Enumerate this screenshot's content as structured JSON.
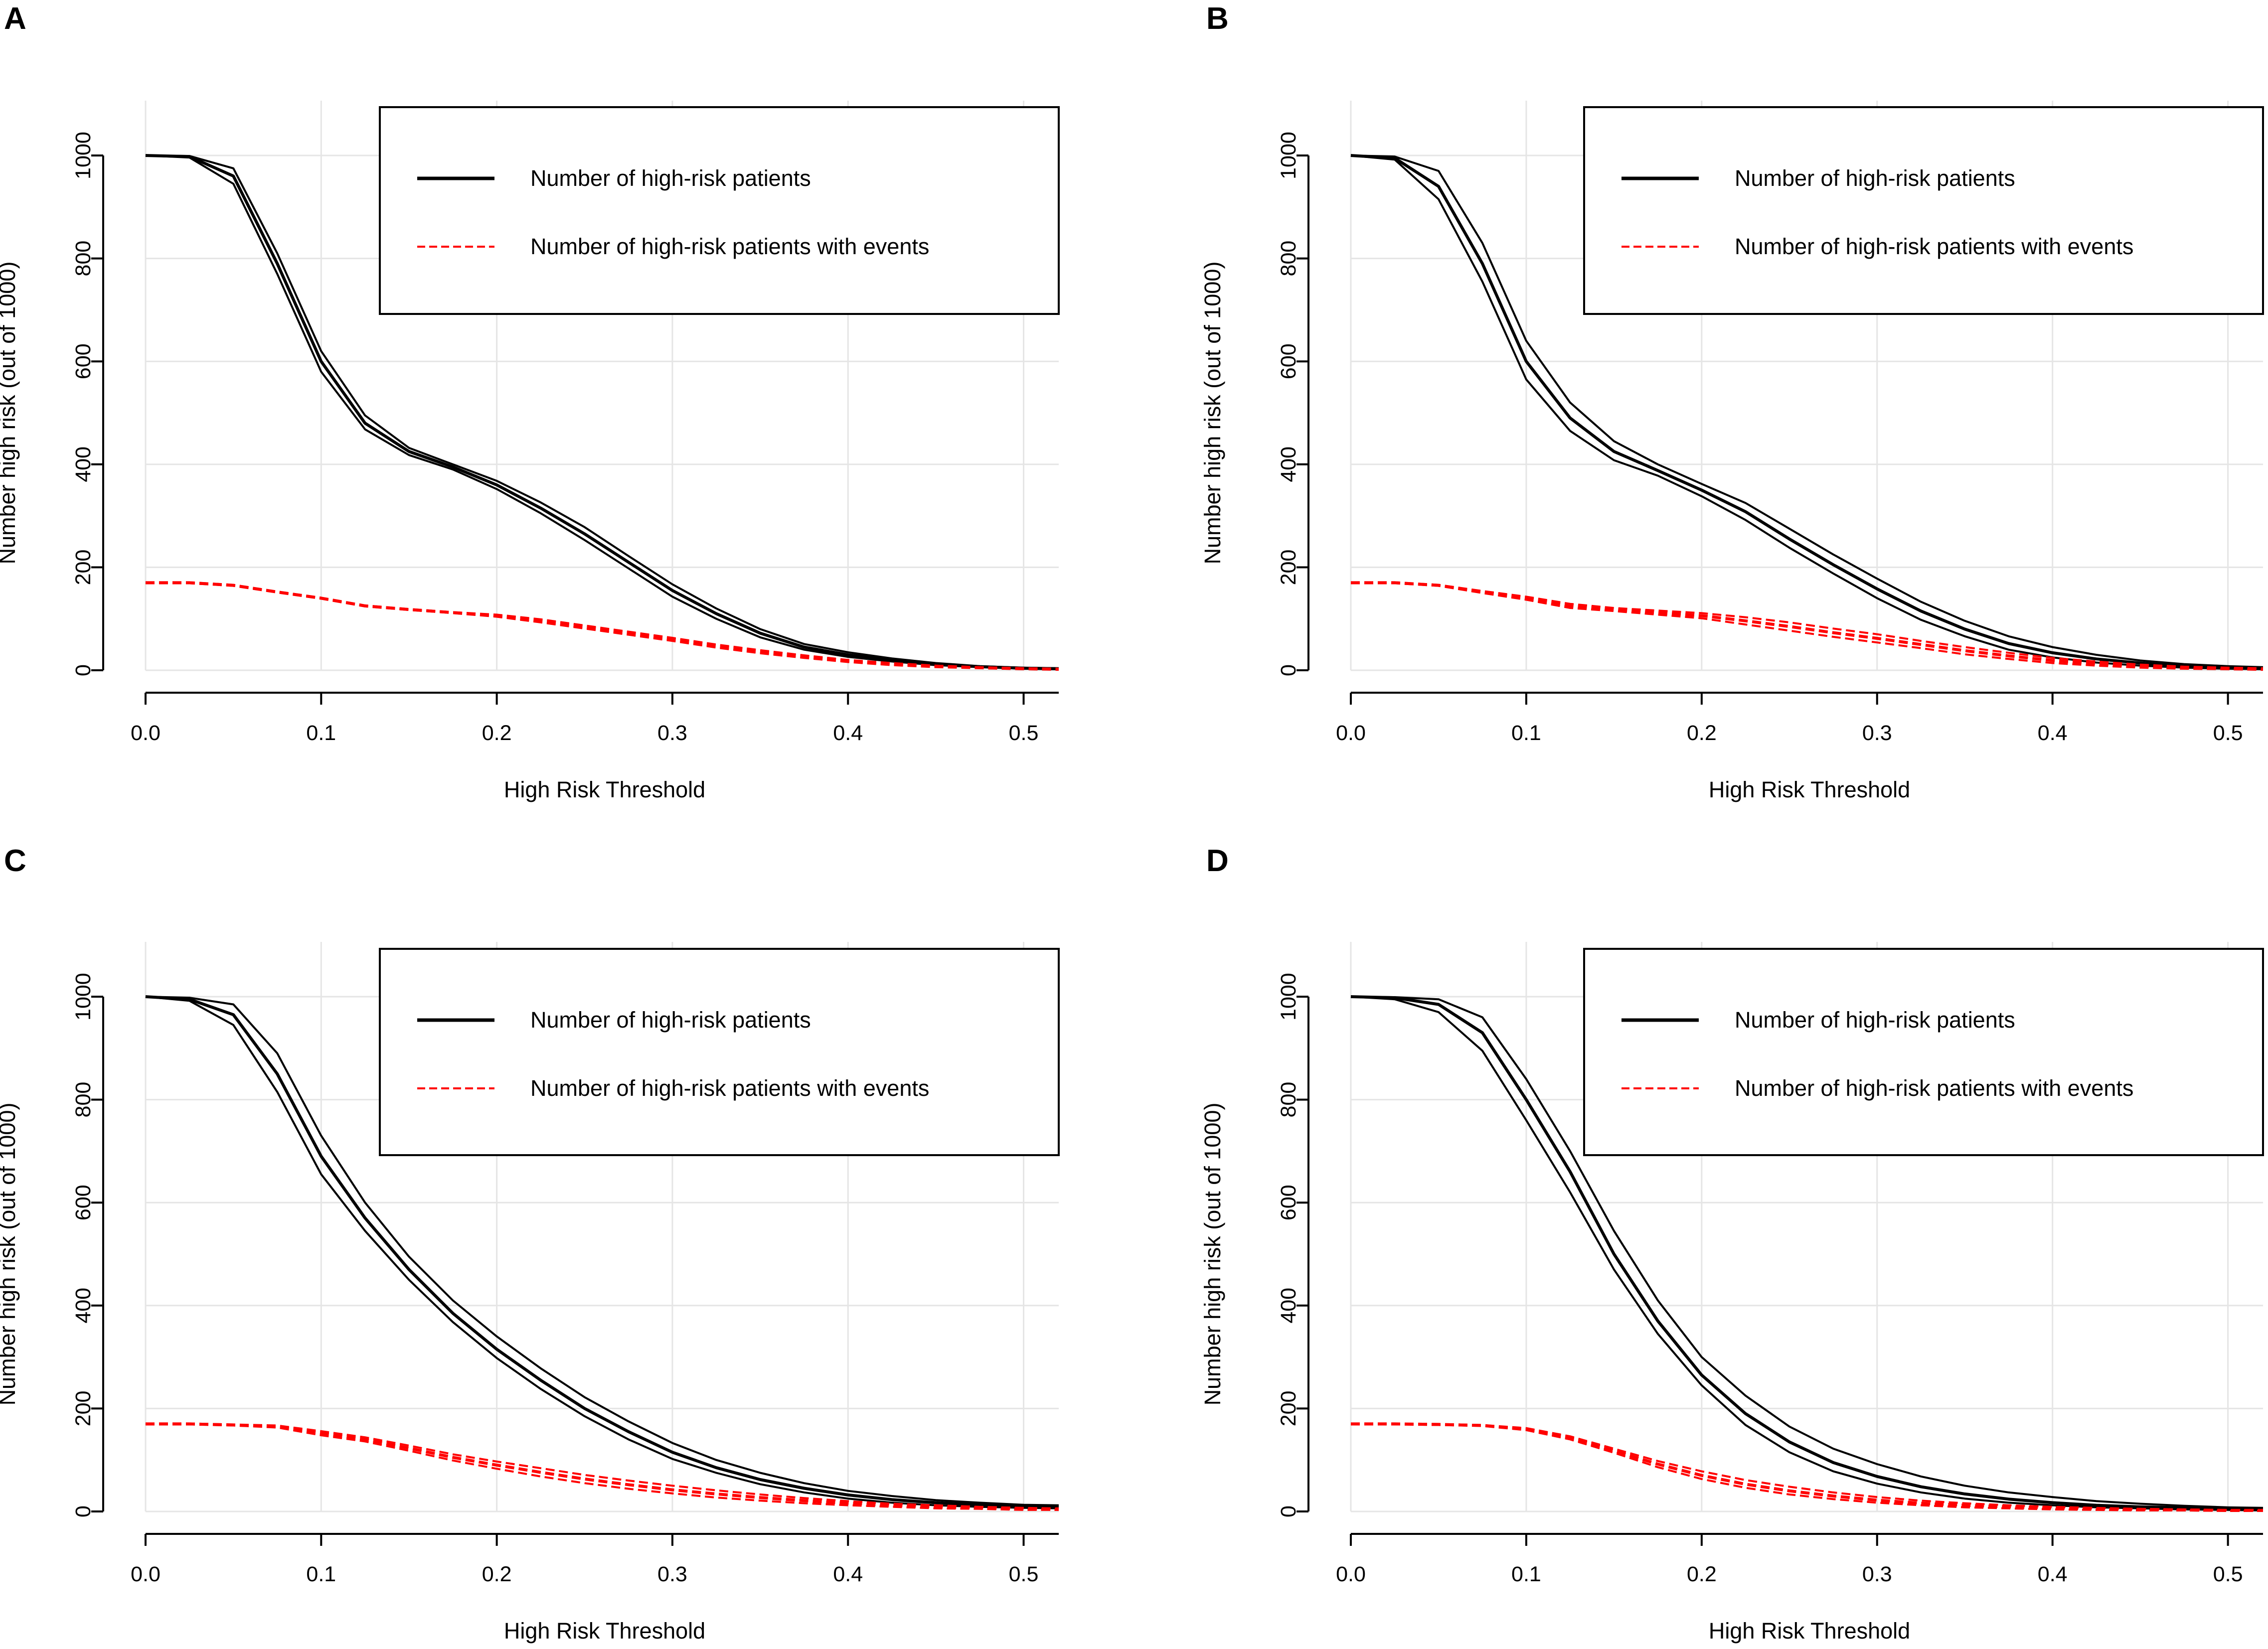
{
  "figure": {
    "series_colors": {
      "patients": "#000000",
      "events": "#ff0000"
    }
  },
  "chart_data": [
    {
      "panel": "A",
      "type": "line",
      "title": "",
      "xlabel": "High Risk Threshold",
      "ylabel": "Number high risk (out of 1000)",
      "xlim": [
        0,
        0.52
      ],
      "ylim": [
        0,
        1000
      ],
      "xticks": [
        0,
        0.1,
        0.2,
        0.3,
        0.4,
        0.5
      ],
      "xtick_labels": [
        "0.0",
        "0.1",
        "0.2",
        "0.3",
        "0.4",
        "0.5"
      ],
      "yticks": [
        0,
        200,
        400,
        600,
        800,
        1000
      ],
      "ytick_labels": [
        "0",
        "200",
        "400",
        "600",
        "800",
        "1000"
      ],
      "legend": [
        "Number of high-risk patients",
        "Number of high-risk patients with events"
      ],
      "legend_position": "top-right",
      "x": [
        0,
        0.025,
        0.05,
        0.075,
        0.1,
        0.125,
        0.15,
        0.175,
        0.2,
        0.225,
        0.25,
        0.275,
        0.3,
        0.325,
        0.35,
        0.375,
        0.4,
        0.425,
        0.45,
        0.475,
        0.5,
        0.52
      ],
      "series": [
        {
          "name": "Number of high-risk patients",
          "role": "estimate",
          "values": [
            1000,
            998,
            960,
            790,
            600,
            480,
            425,
            395,
            360,
            315,
            265,
            210,
            155,
            110,
            72,
            45,
            30,
            20,
            12,
            7,
            4,
            3
          ]
        },
        {
          "name": "Number of high-risk patients (upper bound)",
          "role": "band",
          "values": [
            1000,
            999,
            975,
            810,
            620,
            495,
            432,
            400,
            368,
            326,
            278,
            222,
            167,
            120,
            80,
            51,
            35,
            23,
            14,
            8,
            5,
            4
          ]
        },
        {
          "name": "Number of high-risk patients (lower bound)",
          "role": "band",
          "values": [
            1000,
            996,
            945,
            770,
            580,
            468,
            418,
            390,
            352,
            305,
            253,
            198,
            143,
            100,
            64,
            40,
            26,
            17,
            10,
            6,
            3,
            2
          ]
        },
        {
          "name": "Number of high-risk patients with events",
          "role": "estimate",
          "values": [
            170,
            170,
            165,
            152,
            140,
            125,
            118,
            112,
            106,
            96,
            84,
            72,
            60,
            47,
            36,
            27,
            18,
            12,
            8,
            5,
            3,
            2
          ]
        },
        {
          "name": "Number of high-risk patients with events (upper bound)",
          "role": "band",
          "values": [
            171,
            171,
            166,
            153,
            141,
            126,
            119,
            113,
            108,
            99,
            87,
            75,
            63,
            50,
            39,
            29,
            20,
            14,
            9,
            6,
            4,
            3
          ]
        },
        {
          "name": "Number of high-risk patients with events (lower bound)",
          "role": "band",
          "values": [
            169,
            169,
            164,
            151,
            139,
            124,
            117,
            111,
            104,
            93,
            81,
            69,
            57,
            44,
            33,
            24,
            16,
            10,
            6,
            4,
            2,
            1
          ]
        }
      ]
    },
    {
      "panel": "B",
      "type": "line",
      "title": "",
      "xlabel": "High Risk Threshold",
      "ylabel": "Number high risk (out of 1000)",
      "xlim": [
        0,
        0.52
      ],
      "ylim": [
        0,
        1000
      ],
      "xticks": [
        0,
        0.1,
        0.2,
        0.3,
        0.4,
        0.5
      ],
      "xtick_labels": [
        "0.0",
        "0.1",
        "0.2",
        "0.3",
        "0.4",
        "0.5"
      ],
      "yticks": [
        0,
        200,
        400,
        600,
        800,
        1000
      ],
      "ytick_labels": [
        "0",
        "200",
        "400",
        "600",
        "800",
        "1000"
      ],
      "legend": [
        "Number of high-risk patients",
        "Number of high-risk patients with events"
      ],
      "legend_position": "top-right",
      "x": [
        0,
        0.025,
        0.05,
        0.075,
        0.1,
        0.125,
        0.15,
        0.175,
        0.2,
        0.225,
        0.25,
        0.275,
        0.3,
        0.325,
        0.35,
        0.375,
        0.4,
        0.425,
        0.45,
        0.475,
        0.5,
        0.52
      ],
      "series": [
        {
          "name": "Number of high-risk patients",
          "role": "estimate",
          "values": [
            1000,
            995,
            940,
            790,
            600,
            490,
            425,
            388,
            350,
            308,
            255,
            205,
            158,
            115,
            80,
            52,
            34,
            22,
            14,
            8,
            5,
            4
          ]
        },
        {
          "name": "Number of high-risk patients (upper bound)",
          "role": "band",
          "values": [
            1000,
            998,
            970,
            830,
            640,
            520,
            445,
            400,
            362,
            325,
            275,
            225,
            178,
            133,
            96,
            66,
            45,
            30,
            19,
            12,
            8,
            6
          ]
        },
        {
          "name": "Number of high-risk patients (lower bound)",
          "role": "band",
          "values": [
            1000,
            992,
            915,
            755,
            565,
            465,
            408,
            378,
            338,
            292,
            238,
            188,
            140,
            98,
            66,
            40,
            25,
            15,
            9,
            5,
            3,
            2
          ]
        },
        {
          "name": "Number of high-risk patients with events",
          "role": "estimate",
          "values": [
            170,
            170,
            165,
            152,
            140,
            125,
            118,
            112,
            106,
            96,
            85,
            73,
            62,
            50,
            38,
            28,
            19,
            13,
            8,
            5,
            3,
            2
          ]
        },
        {
          "name": "Number of high-risk patients with events (upper bound)",
          "role": "band",
          "values": [
            171,
            171,
            166,
            154,
            143,
            129,
            121,
            116,
            111,
            103,
            93,
            81,
            70,
            57,
            45,
            34,
            24,
            17,
            11,
            7,
            5,
            4
          ]
        },
        {
          "name": "Number of high-risk patients with events (lower bound)",
          "role": "band",
          "values": [
            169,
            169,
            164,
            150,
            137,
            121,
            115,
            108,
            101,
            89,
            77,
            65,
            54,
            43,
            31,
            22,
            14,
            9,
            5,
            3,
            2,
            1
          ]
        }
      ]
    },
    {
      "panel": "C",
      "type": "line",
      "title": "",
      "xlabel": "High Risk Threshold",
      "ylabel": "Number high risk (out of 1000)",
      "xlim": [
        0,
        0.52
      ],
      "ylim": [
        0,
        1000
      ],
      "xticks": [
        0,
        0.1,
        0.2,
        0.3,
        0.4,
        0.5
      ],
      "xtick_labels": [
        "0.0",
        "0.1",
        "0.2",
        "0.3",
        "0.4",
        "0.5"
      ],
      "yticks": [
        0,
        200,
        400,
        600,
        800,
        1000
      ],
      "ytick_labels": [
        "0",
        "200",
        "400",
        "600",
        "800",
        "1000"
      ],
      "legend": [
        "Number of high-risk patients",
        "Number of high-risk patients with events"
      ],
      "legend_position": "top-right",
      "x": [
        0,
        0.025,
        0.05,
        0.075,
        0.1,
        0.125,
        0.15,
        0.175,
        0.2,
        0.225,
        0.25,
        0.275,
        0.3,
        0.325,
        0.35,
        0.375,
        0.4,
        0.425,
        0.45,
        0.475,
        0.5,
        0.52
      ],
      "series": [
        {
          "name": "Number of high-risk patients",
          "role": "estimate",
          "values": [
            1000,
            995,
            965,
            850,
            690,
            570,
            470,
            385,
            315,
            255,
            200,
            155,
            115,
            85,
            62,
            45,
            32,
            23,
            17,
            13,
            10,
            9
          ]
        },
        {
          "name": "Number of high-risk patients (upper bound)",
          "role": "band",
          "values": [
            1000,
            998,
            985,
            890,
            730,
            600,
            495,
            410,
            340,
            278,
            222,
            175,
            133,
            100,
            75,
            55,
            40,
            30,
            22,
            17,
            13,
            12
          ]
        },
        {
          "name": "Number of high-risk patients (lower bound)",
          "role": "band",
          "values": [
            1000,
            992,
            945,
            815,
            655,
            545,
            450,
            368,
            298,
            238,
            185,
            140,
            102,
            75,
            53,
            37,
            25,
            17,
            12,
            9,
            7,
            6
          ]
        },
        {
          "name": "Number of high-risk patients with events",
          "role": "estimate",
          "values": [
            170,
            170,
            168,
            165,
            152,
            140,
            123,
            105,
            90,
            76,
            63,
            52,
            42,
            34,
            27,
            21,
            16,
            12,
            9,
            7,
            5,
            4
          ]
        },
        {
          "name": "Number of high-risk patients with events (upper bound)",
          "role": "band",
          "values": [
            171,
            171,
            169,
            167,
            156,
            144,
            128,
            111,
            97,
            84,
            71,
            60,
            50,
            41,
            33,
            26,
            20,
            15,
            12,
            9,
            7,
            6
          ]
        },
        {
          "name": "Number of high-risk patients with events (lower bound)",
          "role": "band",
          "values": [
            169,
            169,
            167,
            163,
            148,
            136,
            118,
            99,
            83,
            68,
            55,
            44,
            35,
            27,
            21,
            16,
            12,
            9,
            6,
            5,
            3,
            3
          ]
        }
      ]
    },
    {
      "panel": "D",
      "type": "line",
      "title": "",
      "xlabel": "High Risk Threshold",
      "ylabel": "Number high risk (out of 1000)",
      "xlim": [
        0,
        0.52
      ],
      "ylim": [
        0,
        1000
      ],
      "xticks": [
        0,
        0.1,
        0.2,
        0.3,
        0.4,
        0.5
      ],
      "xtick_labels": [
        "0.0",
        "0.1",
        "0.2",
        "0.3",
        "0.4",
        "0.5"
      ],
      "yticks": [
        0,
        200,
        400,
        600,
        800,
        1000
      ],
      "ytick_labels": [
        "0",
        "200",
        "400",
        "600",
        "800",
        "1000"
      ],
      "legend": [
        "Number of high-risk patients",
        "Number of high-risk patients with events"
      ],
      "legend_position": "top-right",
      "x": [
        0,
        0.025,
        0.05,
        0.075,
        0.1,
        0.125,
        0.15,
        0.175,
        0.2,
        0.225,
        0.25,
        0.275,
        0.3,
        0.325,
        0.35,
        0.375,
        0.4,
        0.425,
        0.45,
        0.475,
        0.5,
        0.52
      ],
      "series": [
        {
          "name": "Number of high-risk patients",
          "role": "estimate",
          "values": [
            1000,
            998,
            985,
            930,
            800,
            660,
            500,
            370,
            265,
            190,
            135,
            95,
            68,
            48,
            34,
            24,
            17,
            12,
            9,
            7,
            5,
            4
          ]
        },
        {
          "name": "Number of high-risk patients (upper bound)",
          "role": "band",
          "values": [
            1000,
            999,
            995,
            960,
            840,
            700,
            545,
            410,
            300,
            225,
            165,
            122,
            92,
            68,
            50,
            37,
            28,
            20,
            15,
            11,
            8,
            7
          ]
        },
        {
          "name": "Number of high-risk patients (lower bound)",
          "role": "band",
          "values": [
            1000,
            995,
            970,
            895,
            760,
            620,
            470,
            345,
            245,
            168,
            115,
            78,
            54,
            37,
            25,
            17,
            12,
            8,
            6,
            4,
            3,
            2
          ]
        },
        {
          "name": "Number of high-risk patients with events",
          "role": "estimate",
          "values": [
            170,
            170,
            169,
            167,
            160,
            143,
            118,
            92,
            70,
            53,
            40,
            30,
            22,
            16,
            12,
            9,
            7,
            5,
            4,
            3,
            2,
            2
          ]
        },
        {
          "name": "Number of high-risk patients with events (upper bound)",
          "role": "band",
          "values": [
            171,
            171,
            170,
            168,
            162,
            146,
            122,
            98,
            78,
            61,
            48,
            37,
            28,
            21,
            16,
            12,
            9,
            7,
            5,
            4,
            3,
            3
          ]
        },
        {
          "name": "Number of high-risk patients with events (lower bound)",
          "role": "band",
          "values": [
            169,
            169,
            168,
            166,
            158,
            140,
            114,
            86,
            63,
            46,
            33,
            24,
            17,
            12,
            8,
            6,
            4,
            3,
            2,
            2,
            1,
            1
          ]
        }
      ]
    }
  ]
}
